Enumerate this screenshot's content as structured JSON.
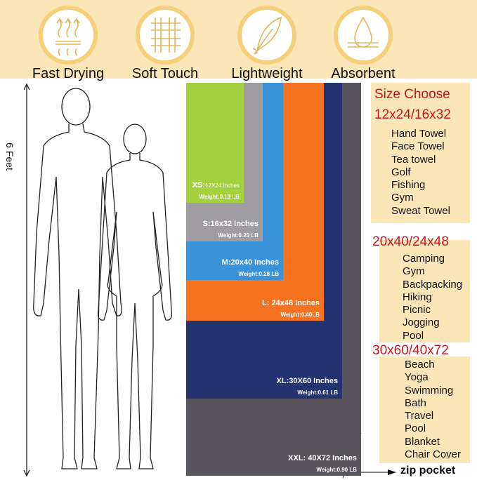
{
  "features": [
    {
      "icon": "heat-waves-icon",
      "label": "Fast Drying"
    },
    {
      "icon": "mesh-icon",
      "label": "Soft Touch"
    },
    {
      "icon": "feather-icon",
      "label": "Lightweight"
    },
    {
      "icon": "water-drop-icon",
      "label": "Absorbent"
    }
  ],
  "height_label": "6 Feet",
  "sizes": [
    {
      "size": "XS:",
      "dim": "12X24 Inches",
      "weight": "Weight:0.13 LB",
      "color": "#a4d13f"
    },
    {
      "size": "S:",
      "dim": "16x32 Inches",
      "weight": "Weight:0.20 LB",
      "color": "#9f9ca2"
    },
    {
      "size": "M:",
      "dim": "20x40 Inches",
      "weight": "Weight:0.28 LB",
      "color": "#3a92d8"
    },
    {
      "size": "L: ",
      "dim": "24x48 Inches",
      "weight": "Weight:0.40LB",
      "color": "#f57220"
    },
    {
      "size": "XL:",
      "dim": "30X60 Inches",
      "weight": "Weight:0.61 LB",
      "color": "#243470"
    },
    {
      "size": "XXL: ",
      "dim": "40X72 Inches",
      "weight": "Weight:0.90 LB",
      "color": "#5a565d"
    }
  ],
  "zip_pocket": "zip pocket",
  "size_choose": "Size Choose",
  "groups": [
    {
      "title": "12x24/16x32",
      "items": [
        "Hand Towel",
        "Face Towel",
        "Tea towel",
        "Golf",
        "Fishing",
        "Gym",
        "Sweat Towel"
      ]
    },
    {
      "title": "20x40/24x48",
      "items": [
        "Camping",
        "Gym",
        "Backpacking",
        "Hiking",
        "Picnic",
        "Jogging",
        "Pool"
      ]
    },
    {
      "title": "30x60/40x72",
      "items": [
        "Beach",
        "Yoga",
        "Swimming",
        "Bath",
        "Travel",
        "Pool",
        "Blanket",
        "Chair Cover"
      ]
    }
  ]
}
